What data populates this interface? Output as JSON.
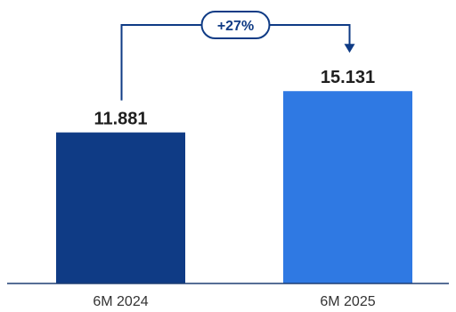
{
  "chart_data": {
    "type": "bar",
    "categories": [
      "6M 2024",
      "6M 2025"
    ],
    "values": [
      11881,
      15131
    ],
    "value_labels": [
      "11.881",
      "15.131"
    ],
    "ylim": [
      0,
      16000
    ],
    "grid": false,
    "legend": "none",
    "colors": [
      "#0f3b85",
      "#2f79e3"
    ],
    "annotation": {
      "type": "growth-arrow",
      "from": "6M 2024",
      "to": "6M 2025",
      "label": "+27%"
    }
  },
  "colors": {
    "arrow": "#0f3b85",
    "axis": "#1f3f73"
  }
}
